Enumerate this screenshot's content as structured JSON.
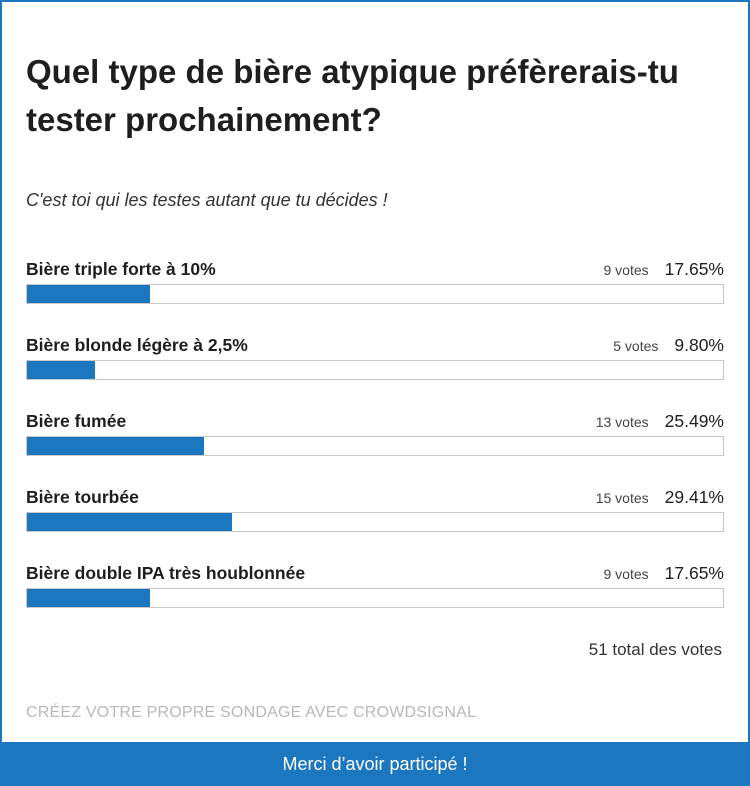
{
  "poll": {
    "question": "Quel type de bière atypique préfèrerais-tu tester prochainement?",
    "subtitle": "C'est toi qui les testes autant que tu décides !",
    "answers": [
      {
        "label": "Bière triple forte à 10%",
        "votes": "9 votes",
        "percent": "17.65%",
        "fraction": 0.1765
      },
      {
        "label": "Bière blonde légère à 2,5%",
        "votes": "5 votes",
        "percent": "9.80%",
        "fraction": 0.098
      },
      {
        "label": "Bière fumée",
        "votes": "13 votes",
        "percent": "25.49%",
        "fraction": 0.2549
      },
      {
        "label": "Bière tourbée",
        "votes": "15 votes",
        "percent": "29.41%",
        "fraction": 0.2941
      },
      {
        "label": "Bière double IPA très houblonnée",
        "votes": "9 votes",
        "percent": "17.65%",
        "fraction": 0.1765
      }
    ],
    "total": "51 total des votes",
    "credit": "CRÉEZ VOTRE PROPRE SONDAGE AVEC CROWDSIGNAL",
    "thanks": "Merci d’avoir participé !",
    "accent_color": "#1a77c0"
  }
}
